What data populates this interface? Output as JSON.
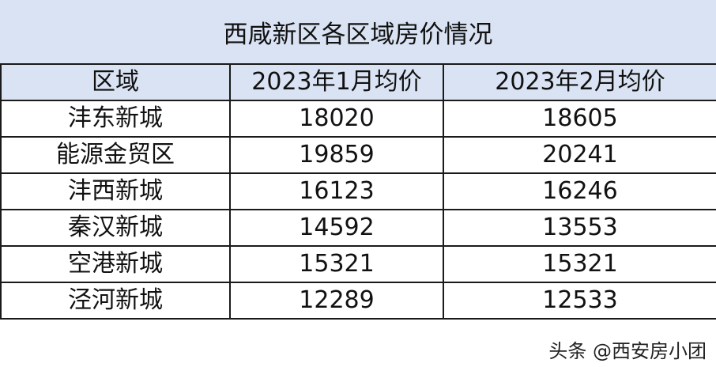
{
  "title": "西咸新区各区域房价情况",
  "headers": [
    "区域",
    "2023年1月均价",
    "2023年2月均价"
  ],
  "rows": [
    [
      "沣东新城",
      "18020",
      "18605"
    ],
    [
      "能源金贸区",
      "19859",
      "20241"
    ],
    [
      "沣西新城",
      "16123",
      "16246"
    ],
    [
      "秦汉新城",
      "14592",
      "13553"
    ],
    [
      "空港新城",
      "15321",
      "15321"
    ],
    [
      "泾河新城",
      "12289",
      "12533"
    ]
  ],
  "watermark": "头条 @西安房小团",
  "colors": {
    "header_bg": "#dae3f3",
    "border": "#1a1a1a"
  }
}
